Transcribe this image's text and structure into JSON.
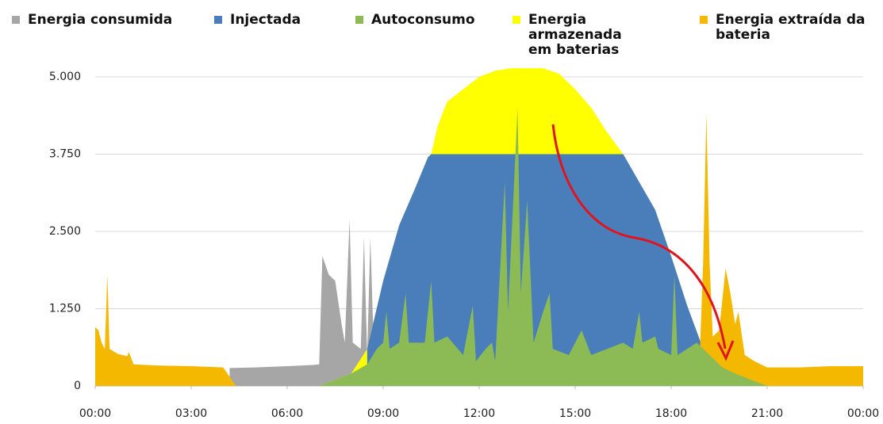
{
  "chart_data": {
    "type": "area",
    "xlim": [
      0,
      24
    ],
    "xticks": [
      {
        "value": 0,
        "label": "00:00"
      },
      {
        "value": 3,
        "label": "03:00"
      },
      {
        "value": 6,
        "label": "06:00"
      },
      {
        "value": 9,
        "label": "09:00"
      },
      {
        "value": 12,
        "label": "12:00"
      },
      {
        "value": 15,
        "label": "15:00"
      },
      {
        "value": 18,
        "label": "18:00"
      },
      {
        "value": 21,
        "label": "21:00"
      },
      {
        "value": 24,
        "label": "00:00"
      }
    ],
    "ylim": [
      0,
      5150
    ],
    "yticks": [
      0,
      {
        "value": 1250,
        "label": "1.250"
      },
      {
        "value": 2500,
        "label": "2.500"
      },
      {
        "value": 3750,
        "label": "3.750"
      },
      {
        "value": 5000,
        "label": "5.000"
      }
    ],
    "grid": true,
    "legend": "top",
    "series": [
      {
        "name": "Energia consumida",
        "color": "#a6a6a6",
        "x": [
          4.2,
          5,
          6,
          6.8,
          7.0,
          7.1,
          7.3,
          7.5,
          7.7,
          7.8,
          7.95,
          8.05,
          8.3,
          8.4,
          8.5,
          8.6,
          8.7,
          8.9,
          9.2
        ],
        "values": [
          290,
          300,
          320,
          340,
          350,
          2100,
          1800,
          1700,
          1000,
          700,
          2700,
          700,
          600,
          2400,
          500,
          2400,
          700,
          900,
          800
        ]
      },
      {
        "name": "Injectada",
        "color": "#4a7ebb",
        "x": [
          8.5,
          9,
          9.5,
          10,
          10.4,
          10.5,
          16.5,
          17,
          17.5,
          18,
          18.5,
          19,
          19.5,
          20,
          20.5,
          21
        ],
        "values": [
          600,
          1700,
          2600,
          3200,
          3700,
          3750,
          3750,
          3300,
          2850,
          2100,
          1300,
          600,
          300,
          150,
          50,
          0
        ]
      },
      {
        "name": "Autoconsumo",
        "color": "#8cbb55",
        "x": [
          7,
          7.5,
          8,
          8.5,
          8.8,
          9,
          9.1,
          9.2,
          9.5,
          9.7,
          9.8,
          10.3,
          10.5,
          10.6,
          11,
          11.5,
          11.8,
          11.9,
          12.2,
          12.4,
          12.5,
          12.8,
          12.9,
          13.1,
          13.2,
          13.3,
          13.5,
          13.7,
          14,
          14.2,
          14.3,
          14.8,
          15.2,
          15.5,
          16,
          16.5,
          16.8,
          17,
          17.1,
          17.5,
          17.6,
          18,
          18.1,
          18.2,
          18.8,
          19.2,
          19.6,
          20,
          20.5,
          21
        ],
        "values": [
          0,
          100,
          200,
          350,
          600,
          700,
          1200,
          600,
          700,
          1500,
          700,
          700,
          1700,
          700,
          800,
          500,
          1300,
          400,
          600,
          700,
          400,
          3300,
          1200,
          3400,
          4500,
          1500,
          3000,
          700,
          1200,
          1500,
          600,
          500,
          900,
          500,
          600,
          700,
          600,
          1200,
          700,
          800,
          600,
          500,
          1800,
          500,
          700,
          500,
          300,
          200,
          100,
          0
        ]
      },
      {
        "name": "Energia armazenada em baterias",
        "color": "#ffff00",
        "x": [
          7,
          7.5,
          8,
          8.5,
          9,
          9.5,
          10,
          10.4,
          10.5,
          10.7,
          11,
          11.5,
          12,
          12.5,
          13,
          14,
          14.5,
          15,
          15.5,
          16,
          16.5,
          17,
          17.5,
          18,
          18.5,
          19,
          19.5,
          20,
          20.5,
          21
        ],
        "values": [
          0,
          100,
          200,
          600,
          1700,
          2600,
          3200,
          3700,
          3750,
          4200,
          4600,
          4800,
          5000,
          5100,
          5140,
          5140,
          5050,
          4800,
          4500,
          4100,
          3750,
          3300,
          2850,
          2100,
          1300,
          600,
          300,
          150,
          50,
          0
        ]
      },
      {
        "name": "Energia extraída da bateria",
        "color": "#f5b800",
        "x": [
          0,
          0.1,
          0.2,
          0.3,
          0.38,
          0.45,
          0.7,
          1.0,
          1.05,
          1.2,
          2,
          3,
          4,
          4.4,
          18.6,
          18.9,
          19.0,
          19.1,
          19.2,
          19.3,
          19.5,
          19.7,
          19.85,
          20.0,
          20.1,
          20.3,
          20.6,
          21,
          22,
          23,
          24
        ],
        "values": [
          950,
          900,
          700,
          600,
          1800,
          600,
          520,
          480,
          550,
          350,
          330,
          320,
          300,
          0,
          null,
          600,
          2000,
          4400,
          2000,
          800,
          900,
          1900,
          1500,
          1000,
          1200,
          500,
          400,
          300,
          300,
          320,
          320
        ]
      }
    ]
  }
}
